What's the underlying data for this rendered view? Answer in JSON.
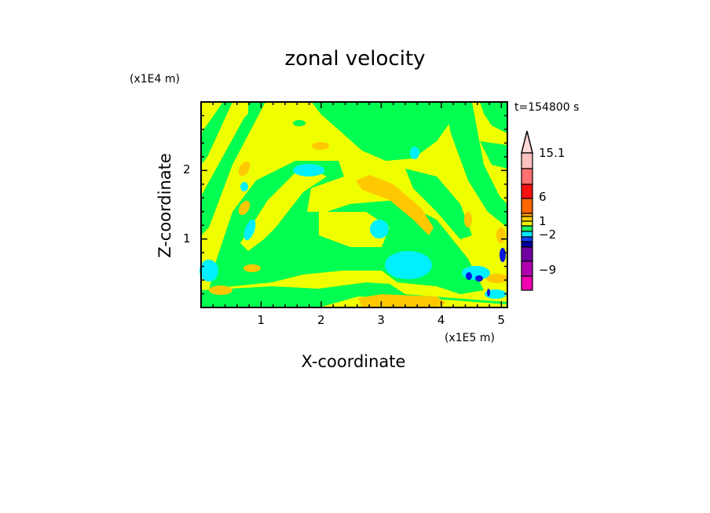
{
  "chart_data": {
    "type": "heatmap",
    "subtype": "filled contour",
    "title": "zonal velocity",
    "time_label": "t=154800 s",
    "xlabel": "X-coordinate",
    "ylabel": "Z-coordinate",
    "x_unit": "(x1E5 m)",
    "y_unit": "(x1E4 m)",
    "xlim": [
      0,
      5.1
    ],
    "ylim": [
      0,
      3
    ],
    "xticks": [
      "1",
      "2",
      "3",
      "4",
      "5"
    ],
    "yticks": [
      "1",
      "2"
    ],
    "colorbar": {
      "tick_labels": [
        "15.1",
        "6",
        "1",
        "-2",
        "-9"
      ],
      "levels_colors": [
        "#ffd8d8",
        "#ffc0c0",
        "#ff7070",
        "#ff1010",
        "#ff6600",
        "#ffa000",
        "#ffd000",
        "#f0f000",
        "#20f060",
        "#00e8ff",
        "#1040ff",
        "#0000a0",
        "#7000a0",
        "#b000b0",
        "#f000b0"
      ]
    },
    "colors": {
      "yellow": "#f0ff00",
      "green": "#00ff50",
      "cyan": "#00f0ff",
      "orange": "#ffc800",
      "blue": "#0018e0"
    }
  }
}
